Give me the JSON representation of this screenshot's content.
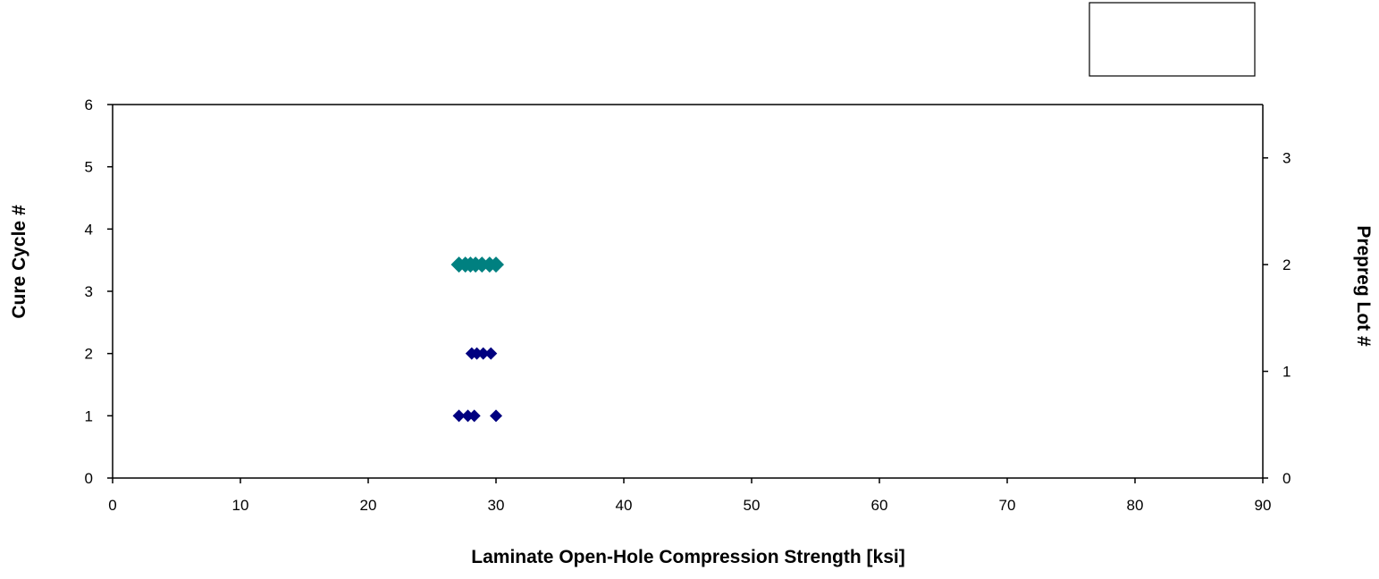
{
  "chart_data": {
    "type": "scatter",
    "xlabel": "Laminate Open-Hole Compression Strength  [ksi]",
    "ylabel": "Cure Cycle #",
    "y2label": "Prepreg Lot #",
    "xlim": [
      0,
      90
    ],
    "ylim": [
      0,
      6
    ],
    "y2lim": [
      0,
      3.5
    ],
    "x_ticks": [
      "0",
      "10",
      "20",
      "30",
      "40",
      "50",
      "60",
      "70",
      "80",
      "90"
    ],
    "y_ticks": [
      "0",
      "1",
      "2",
      "3",
      "4",
      "5",
      "6"
    ],
    "y2_ticks": [
      "0",
      "1",
      "2",
      "3"
    ],
    "grid": false,
    "legend": "top-right (empty box)",
    "series": [
      {
        "axis": "left",
        "marker": "diamond",
        "color": "#000080",
        "points": [
          [
            27.1,
            1
          ],
          [
            27.8,
            1
          ],
          [
            28.3,
            1
          ],
          [
            30.0,
            1
          ],
          [
            28.1,
            2
          ],
          [
            28.5,
            2
          ],
          [
            29.0,
            2
          ],
          [
            29.6,
            2
          ]
        ]
      },
      {
        "axis": "right",
        "marker": "diamond",
        "color": "#008080",
        "points": [
          [
            27.1,
            2
          ],
          [
            27.6,
            2
          ],
          [
            28.0,
            2
          ],
          [
            28.4,
            2
          ],
          [
            28.9,
            2
          ],
          [
            29.5,
            2
          ],
          [
            30.0,
            2
          ]
        ]
      }
    ]
  }
}
